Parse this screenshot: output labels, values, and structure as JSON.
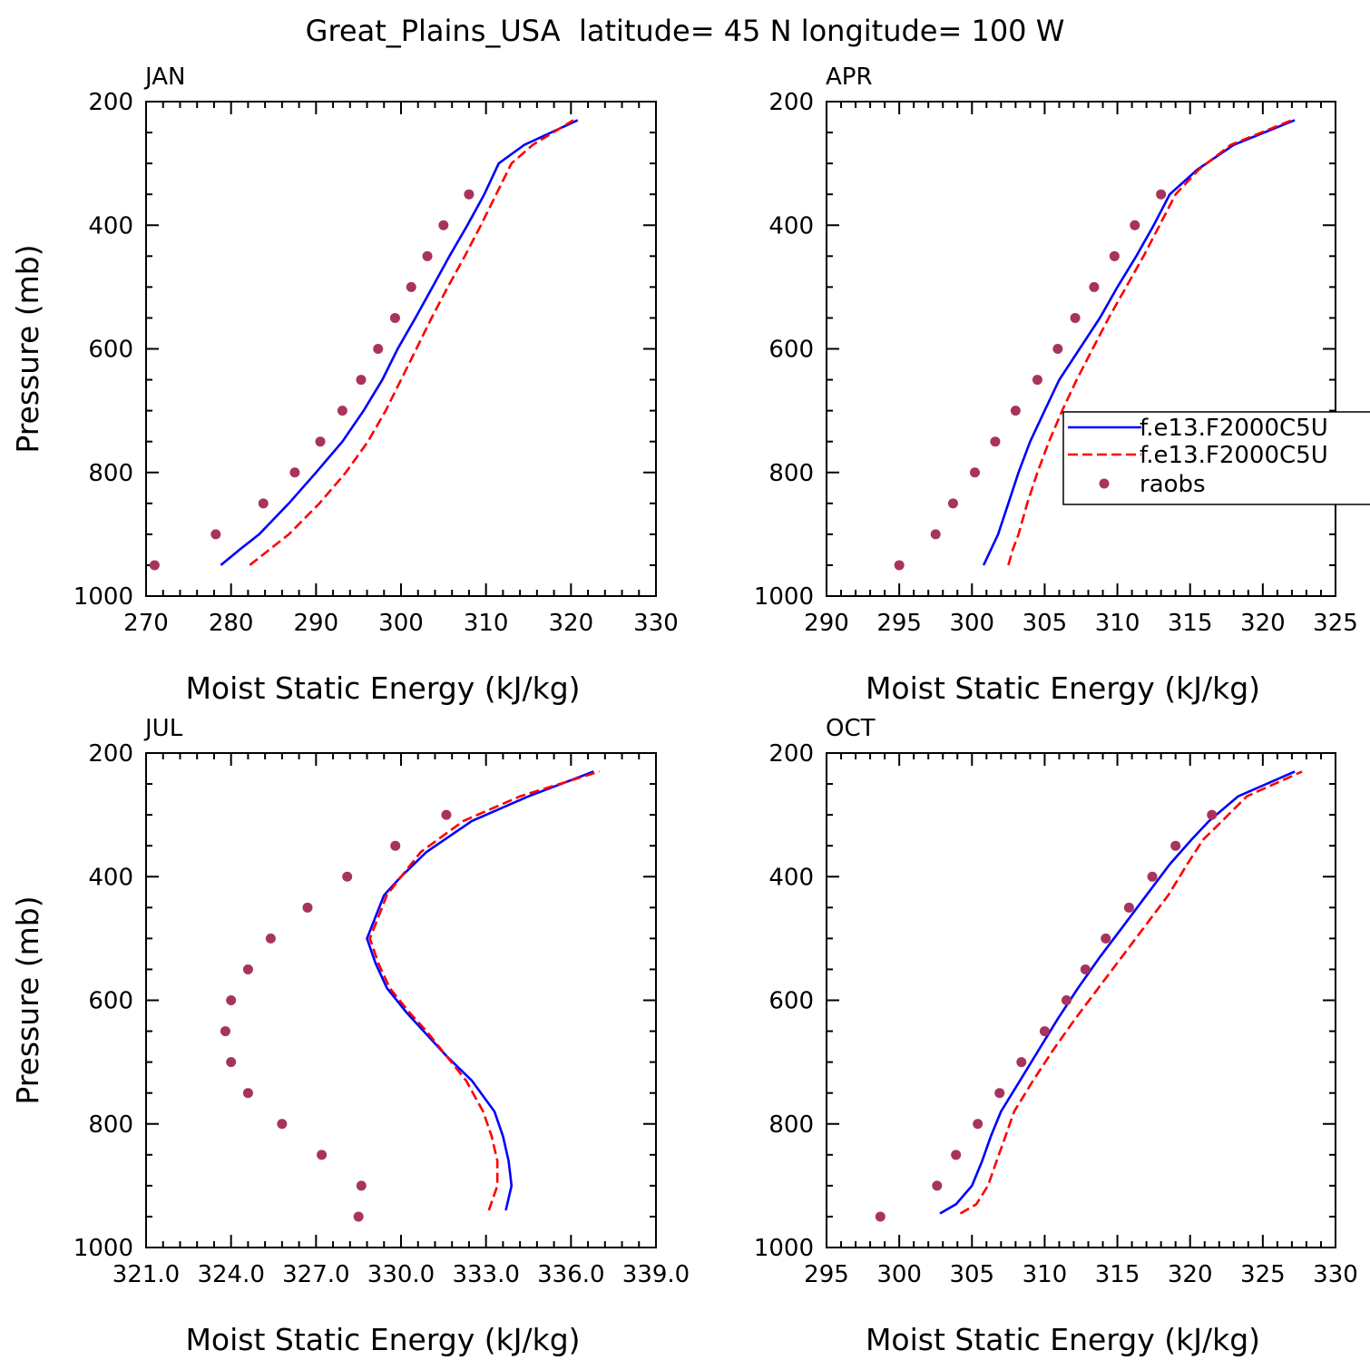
{
  "figure_title": "Great_Plains_USA  latitude= 45 N longitude= 100 W",
  "legend": {
    "entries": [
      {
        "label": "f.e13.F2000C5U",
        "style": "solid",
        "color": "#0000ff"
      },
      {
        "label": "f.e13.F2000C5U",
        "style": "dashed",
        "color": "#ff0000"
      },
      {
        "label": "raobs",
        "style": "dot",
        "color": "#a8335e"
      }
    ]
  },
  "colors": {
    "model_a": "#0000ff",
    "model_b": "#ff0000",
    "raobs": "#a8335e"
  },
  "chart_data": [
    {
      "type": "line",
      "panel": "JAN",
      "xlabel": "Moist Static Energy (kJ/kg)",
      "ylabel": "Pressure (mb)",
      "xlim": [
        270,
        330
      ],
      "ylim": [
        1000,
        200
      ],
      "x_ticks": [
        "270",
        "280",
        "290",
        "300",
        "310",
        "320",
        "330"
      ],
      "y_ticks": [
        "200",
        "400",
        "600",
        "800",
        "1000"
      ],
      "series": [
        {
          "name": "f.e13.F2000C5U",
          "style": "solid",
          "pressure": [
            950,
            925,
            900,
            850,
            800,
            750,
            700,
            650,
            600,
            550,
            500,
            450,
            400,
            350,
            300,
            270,
            230
          ],
          "values": [
            278.8,
            281,
            283.3,
            286.8,
            290,
            293.1,
            295.6,
            297.8,
            299.6,
            301.7,
            303.7,
            305.7,
            307.8,
            309.8,
            311.5,
            314.5,
            320.8
          ]
        },
        {
          "name": "f.e13.F2000C5U",
          "style": "dashed",
          "pressure": [
            950,
            925,
            900,
            850,
            800,
            750,
            700,
            650,
            600,
            550,
            500,
            450,
            400,
            350,
            300,
            270,
            230
          ],
          "values": [
            282.2,
            284.5,
            286.8,
            290.4,
            293.5,
            296.1,
            298.2,
            300,
            301.8,
            303.6,
            305.5,
            307.5,
            309.4,
            311.2,
            313,
            315.5,
            320.3
          ]
        },
        {
          "name": "raobs",
          "style": "dot",
          "pressure": [
            950,
            900,
            850,
            800,
            750,
            700,
            650,
            600,
            550,
            500,
            450,
            400,
            350
          ],
          "values": [
            271,
            278.2,
            283.8,
            287.5,
            290.5,
            293.1,
            295.3,
            297.3,
            299.3,
            301.2,
            303.1,
            305,
            308
          ]
        }
      ]
    },
    {
      "type": "line",
      "panel": "APR",
      "xlabel": "Moist Static Energy (kJ/kg)",
      "ylabel": "",
      "xlim": [
        290,
        325
      ],
      "ylim": [
        1000,
        200
      ],
      "x_ticks": [
        "290",
        "295",
        "300",
        "305",
        "310",
        "315",
        "320",
        "325"
      ],
      "y_ticks": [
        "200",
        "400",
        "600",
        "800",
        "1000"
      ],
      "series": [
        {
          "name": "f.e13.F2000C5U",
          "style": "solid",
          "pressure": [
            950,
            925,
            900,
            850,
            800,
            750,
            700,
            650,
            600,
            550,
            500,
            450,
            400,
            350,
            310,
            270,
            230
          ],
          "values": [
            300.8,
            301.3,
            301.8,
            302.5,
            303.2,
            304,
            305,
            306,
            307.4,
            308.8,
            310,
            311.3,
            312.5,
            313.6,
            315.5,
            318,
            322.2
          ]
        },
        {
          "name": "f.e13.F2000C5U",
          "style": "dashed",
          "pressure": [
            950,
            925,
            900,
            850,
            800,
            750,
            700,
            650,
            600,
            550,
            500,
            450,
            400,
            350,
            310,
            270,
            230
          ],
          "values": [
            302.5,
            302.8,
            303.2,
            303.8,
            304.5,
            305.3,
            306.2,
            307.2,
            308.3,
            309.4,
            310.6,
            311.8,
            312.9,
            314,
            315.6,
            317.8,
            322
          ]
        },
        {
          "name": "raobs",
          "style": "dot",
          "pressure": [
            950,
            900,
            850,
            800,
            750,
            700,
            650,
            600,
            550,
            500,
            450,
            400,
            350
          ],
          "values": [
            295,
            297.5,
            298.7,
            300.2,
            301.6,
            303,
            304.5,
            305.9,
            307.1,
            308.4,
            309.8,
            311.2,
            313
          ]
        }
      ]
    },
    {
      "type": "line",
      "panel": "JUL",
      "xlabel": "Moist Static Energy (kJ/kg)",
      "ylabel": "Pressure (mb)",
      "xlim": [
        321,
        339
      ],
      "ylim": [
        1000,
        200
      ],
      "x_ticks": [
        "321.0",
        "324.0",
        "327.0",
        "330.0",
        "333.0",
        "336.0",
        "339.0"
      ],
      "y_ticks": [
        "200",
        "400",
        "600",
        "800",
        "1000"
      ],
      "series": [
        {
          "name": "f.e13.F2000C5U",
          "style": "solid",
          "pressure": [
            940,
            900,
            860,
            820,
            780,
            730,
            690,
            650,
            620,
            580,
            540,
            500,
            430,
            400,
            360,
            310,
            270,
            230
          ],
          "values": [
            333.7,
            333.9,
            333.8,
            333.6,
            333.3,
            332.5,
            331.6,
            330.8,
            330.2,
            329.5,
            329.1,
            328.8,
            329.4,
            330,
            330.9,
            332.5,
            334.5,
            336.8
          ]
        },
        {
          "name": "f.e13.F2000C5U",
          "style": "dashed",
          "pressure": [
            940,
            900,
            860,
            820,
            780,
            730,
            690,
            650,
            620,
            580,
            540,
            500,
            430,
            400,
            360,
            310,
            270,
            230
          ],
          "values": [
            333.1,
            333.4,
            333.4,
            333.2,
            332.9,
            332.3,
            331.6,
            330.9,
            330.3,
            329.6,
            329.2,
            328.9,
            329.5,
            330,
            330.7,
            332.2,
            334.2,
            337
          ]
        },
        {
          "name": "raobs",
          "style": "dot",
          "pressure": [
            950,
            900,
            850,
            800,
            750,
            700,
            650,
            600,
            550,
            500,
            450,
            400,
            350,
            300
          ],
          "values": [
            328.5,
            328.6,
            327.2,
            325.8,
            324.6,
            324,
            323.8,
            324,
            324.6,
            325.4,
            326.7,
            328.1,
            329.8,
            331.6
          ]
        }
      ]
    },
    {
      "type": "line",
      "panel": "OCT",
      "xlabel": "Moist Static Energy (kJ/kg)",
      "ylabel": "",
      "xlim": [
        295,
        330
      ],
      "ylim": [
        1000,
        200
      ],
      "x_ticks": [
        "295",
        "300",
        "305",
        "310",
        "315",
        "320",
        "325",
        "330"
      ],
      "y_ticks": [
        "200",
        "400",
        "600",
        "800",
        "1000"
      ],
      "series": [
        {
          "name": "f.e13.F2000C5U",
          "style": "solid",
          "pressure": [
            945,
            930,
            900,
            860,
            820,
            780,
            730,
            680,
            630,
            580,
            530,
            480,
            430,
            380,
            340,
            310,
            270,
            230
          ],
          "values": [
            302.8,
            303.9,
            305,
            305.7,
            306.3,
            307,
            308.3,
            309.6,
            310.9,
            312.3,
            313.8,
            315.4,
            317,
            318.6,
            320.1,
            321.3,
            323.3,
            327.2
          ]
        },
        {
          "name": "f.e13.F2000C5U",
          "style": "dashed",
          "pressure": [
            945,
            930,
            900,
            860,
            820,
            780,
            730,
            680,
            630,
            580,
            530,
            480,
            430,
            380,
            340,
            310,
            270,
            230
          ],
          "values": [
            304.2,
            305.3,
            306.1,
            306.7,
            307.3,
            307.9,
            309.2,
            310.6,
            312.1,
            313.7,
            315.3,
            316.9,
            318.5,
            319.8,
            320.9,
            322.2,
            323.9,
            327.7
          ]
        },
        {
          "name": "raobs",
          "style": "dot",
          "pressure": [
            950,
            900,
            850,
            800,
            750,
            700,
            650,
            600,
            550,
            500,
            450,
            400,
            350,
            300
          ],
          "values": [
            298.7,
            302.6,
            303.9,
            305.4,
            306.9,
            308.4,
            310,
            311.5,
            312.8,
            314.2,
            315.8,
            317.4,
            319,
            321.5
          ]
        }
      ]
    }
  ]
}
